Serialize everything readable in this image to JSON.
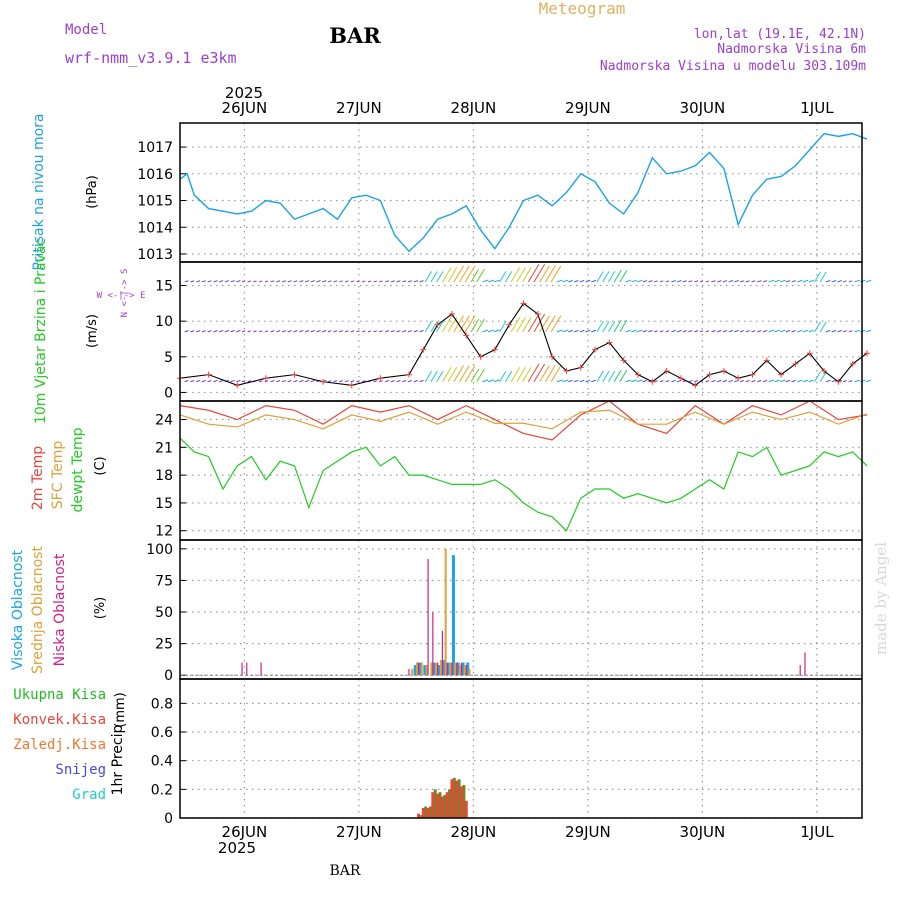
{
  "header": {
    "model_label": "Model",
    "model_name": "wrf-nmm_v3.9.1 e3km",
    "station": "BAR",
    "meteogram": "Meteogram",
    "lonlat": "lon,lat (19.1E, 42.1N)",
    "elevation": "Nadmorska Visina 6m",
    "model_elevation": "Nadmorska Visina u modelu 303.109m",
    "footer_station": "BAR",
    "watermark": "made by Angel"
  },
  "colors": {
    "pressure": "#1aa3e6",
    "temp2m": "#e8453c",
    "sfc": "#e0a03a",
    "dewpt": "#22cc22",
    "high_cloud": "#1aa3e6",
    "mid_cloud": "#e0a03a",
    "low_cloud": "#cc2288",
    "wind_speed": "#e8453c",
    "wind_line": "#000000",
    "precip_total": "#22bb22",
    "precip_conv": "#e8453c",
    "meteogram": "#e0b060",
    "model_text": "#9b3fd0"
  },
  "time_axis": {
    "year": "2025",
    "days": [
      "26JUN",
      "27JUN",
      "28JUN",
      "29JUN",
      "30JUN",
      "1JUL"
    ]
  },
  "chart_data": [
    {
      "name": "pressure",
      "type": "line",
      "ylabel_title": "Pritisak na nivou mora",
      "ylabel_units": "(hPa)",
      "yticks": [
        1013,
        1014,
        1015,
        1016,
        1017
      ],
      "ylim": [
        1012.7,
        1017.9
      ],
      "xlim_hours": [
        0,
        144
      ],
      "series": [
        {
          "name": "MSLP",
          "x": [
            0,
            1.5,
            3,
            6,
            9,
            12,
            15,
            18,
            21,
            24,
            27,
            30,
            33,
            36,
            39,
            42,
            45,
            48,
            51,
            54,
            57,
            60,
            63,
            66,
            69,
            72,
            75,
            78,
            81,
            84,
            87,
            90,
            93,
            96,
            99,
            102,
            105,
            108,
            111,
            114,
            117,
            120,
            123,
            126,
            129,
            132,
            135,
            138,
            141,
            144
          ],
          "values": [
            1015.8,
            1016.0,
            1015.2,
            1014.7,
            1014.6,
            1014.5,
            1014.6,
            1015.0,
            1014.9,
            1014.3,
            1014.5,
            1014.7,
            1014.3,
            1015.1,
            1015.2,
            1015.0,
            1013.7,
            1013.1,
            1013.6,
            1014.3,
            1014.5,
            1014.8,
            1013.9,
            1013.2,
            1014.0,
            1015.0,
            1015.2,
            1014.8,
            1015.3,
            1016.0,
            1015.7,
            1014.9,
            1014.5,
            1015.3,
            1016.6,
            1016.0,
            1016.1,
            1016.3,
            1016.8,
            1016.2,
            1014.1,
            1015.2,
            1015.8,
            1015.9,
            1016.3,
            1016.9,
            1017.5,
            1017.4,
            1017.5,
            1017.3
          ]
        }
      ]
    },
    {
      "name": "wind",
      "type": "line",
      "ylabel_title": "10m Vjetar Brzina i Pravac",
      "ylabel_units": "(m/s)",
      "compass": "W <-|-> E",
      "compass_ns": "N <-|-> S",
      "yticks": [
        0,
        5,
        10,
        15
      ],
      "ylim": [
        -1.2,
        18.3
      ],
      "xlim_hours": [
        0,
        144
      ],
      "series": [
        {
          "name": "Wind speed",
          "x": [
            0,
            6,
            12,
            18,
            24,
            30,
            36,
            42,
            48,
            51,
            54,
            57,
            60,
            63,
            66,
            69,
            72,
            75,
            78,
            81,
            84,
            87,
            90,
            93,
            96,
            99,
            102,
            105,
            108,
            111,
            114,
            117,
            120,
            123,
            126,
            129,
            132,
            135,
            138,
            141,
            144
          ],
          "values": [
            2.0,
            2.5,
            1.0,
            2.0,
            2.5,
            1.5,
            1.0,
            2.0,
            2.5,
            6.0,
            9.5,
            11.0,
            8.0,
            5.0,
            6.0,
            9.5,
            12.5,
            11.0,
            5.0,
            3.0,
            3.5,
            6.0,
            7.0,
            4.5,
            2.5,
            1.5,
            3.0,
            2.0,
            1.0,
            2.5,
            3.0,
            2.0,
            2.5,
            4.5,
            2.5,
            4.0,
            5.5,
            3.0,
            1.5,
            4.0,
            5.5
          ]
        }
      ]
    },
    {
      "name": "temperature",
      "type": "line",
      "ylabel_titles": [
        "2m Temp",
        "SFC Temp",
        "dewpt Temp"
      ],
      "ylabel_units": "(C)",
      "yticks": [
        12,
        15,
        18,
        21,
        24
      ],
      "ylim": [
        11.0,
        26.0
      ],
      "xlim_hours": [
        0,
        144
      ],
      "series": [
        {
          "name": "2m Temp",
          "x": [
            0,
            6,
            12,
            18,
            24,
            30,
            36,
            42,
            48,
            54,
            60,
            66,
            72,
            78,
            84,
            90,
            96,
            102,
            108,
            114,
            120,
            126,
            132,
            138,
            144
          ],
          "values": [
            25.5,
            25.0,
            24.0,
            25.5,
            25.0,
            23.5,
            25.5,
            24.8,
            25.5,
            24.0,
            25.5,
            24.0,
            22.5,
            21.8,
            24.5,
            26.0,
            23.5,
            22.5,
            25.5,
            23.5,
            25.5,
            24.5,
            26.0,
            24.0,
            24.5
          ]
        },
        {
          "name": "SFC Temp",
          "x": [
            0,
            6,
            12,
            18,
            24,
            30,
            36,
            42,
            48,
            54,
            60,
            66,
            72,
            78,
            84,
            90,
            96,
            102,
            108,
            114,
            120,
            126,
            132,
            138,
            144
          ],
          "values": [
            24.5,
            23.5,
            23.2,
            24.5,
            24.0,
            23.0,
            24.5,
            23.8,
            24.8,
            23.5,
            24.8,
            23.6,
            23.6,
            23.0,
            24.8,
            25.0,
            23.5,
            23.5,
            24.8,
            23.5,
            24.8,
            24.0,
            24.8,
            23.5,
            24.6
          ]
        },
        {
          "name": "dewpt Temp",
          "x": [
            0,
            3,
            6,
            9,
            12,
            15,
            18,
            21,
            24,
            27,
            30,
            33,
            36,
            39,
            42,
            45,
            48,
            51,
            54,
            57,
            60,
            63,
            66,
            69,
            72,
            75,
            78,
            81,
            84,
            87,
            90,
            93,
            96,
            99,
            102,
            105,
            108,
            111,
            114,
            117,
            120,
            123,
            126,
            129,
            132,
            135,
            138,
            141,
            144
          ],
          "values": [
            22.0,
            20.5,
            20.0,
            16.5,
            19.0,
            20.0,
            17.5,
            19.5,
            19.0,
            14.5,
            18.5,
            19.5,
            20.5,
            21.0,
            19.0,
            20.0,
            18.0,
            18.0,
            17.5,
            17.0,
            17.0,
            17.0,
            17.5,
            16.5,
            15.0,
            14.0,
            13.5,
            12.0,
            15.5,
            16.5,
            16.5,
            15.5,
            16.0,
            15.5,
            15.0,
            15.5,
            16.5,
            17.5,
            16.5,
            20.5,
            20.0,
            21.0,
            18.0,
            18.5,
            19.0,
            20.5,
            20.0,
            20.5,
            19.0
          ]
        }
      ]
    },
    {
      "name": "cloud",
      "type": "bar",
      "ylabel_titles": [
        "Visoka Oblacnost",
        "Srednja Oblacnost",
        "Niska Oblacnost"
      ],
      "ylabel_units": "(%)",
      "yticks": [
        0,
        25,
        50,
        75,
        100
      ],
      "ylim": [
        -3,
        107
      ],
      "xlim_hours": [
        0,
        144
      ],
      "series": [
        {
          "name": "Visoka",
          "x": [
            49,
            50,
            51,
            53,
            54,
            55,
            56,
            57,
            58,
            59,
            60
          ],
          "values": [
            8,
            10,
            8,
            10,
            8,
            12,
            10,
            95,
            10,
            10,
            10
          ]
        },
        {
          "name": "Srednja",
          "x": [
            49,
            50,
            51,
            52,
            53,
            54,
            55,
            56,
            57,
            58,
            59,
            60,
            61
          ],
          "values": [
            5,
            10,
            10,
            8,
            10,
            10,
            12,
            100,
            10,
            10,
            8,
            8,
            5
          ]
        },
        {
          "name": "Niska",
          "x": [
            13,
            14,
            17,
            48,
            50,
            52,
            53,
            54,
            55,
            56,
            57,
            58,
            59,
            60,
            130,
            131
          ],
          "values": [
            10,
            10,
            10,
            5,
            10,
            92,
            50,
            10,
            35,
            10,
            10,
            10,
            10,
            8,
            8,
            18
          ]
        }
      ]
    },
    {
      "name": "precip",
      "type": "bar",
      "ylabel_title": "1hr Precip",
      "ylabel_units": "(mm)",
      "legend": [
        "Ukupna Kisa",
        "Konvek.Kisa",
        "Zaledj.Kisa",
        "Snijeg",
        "Grad"
      ],
      "yticks": [
        0,
        0.2,
        0.4,
        0.6,
        0.8
      ],
      "ylim": [
        0,
        0.97
      ],
      "xlim_hours": [
        0,
        144
      ],
      "series": [
        {
          "name": "Ukupna Kisa",
          "x": [
            50.5,
            51.5,
            52.5,
            53.5,
            54.5,
            55.5,
            56.5,
            57.5,
            58.5,
            59.5
          ],
          "values": [
            0.02,
            0.08,
            0.08,
            0.2,
            0.18,
            0.16,
            0.2,
            0.28,
            0.27,
            0.23
          ]
        },
        {
          "name": "Konvek.Kisa",
          "x": [
            50,
            51,
            52,
            53,
            54,
            55,
            56,
            57,
            58,
            59,
            60
          ],
          "values": [
            0.03,
            0.07,
            0.07,
            0.18,
            0.17,
            0.15,
            0.18,
            0.27,
            0.26,
            0.22,
            0.12
          ]
        }
      ]
    }
  ]
}
